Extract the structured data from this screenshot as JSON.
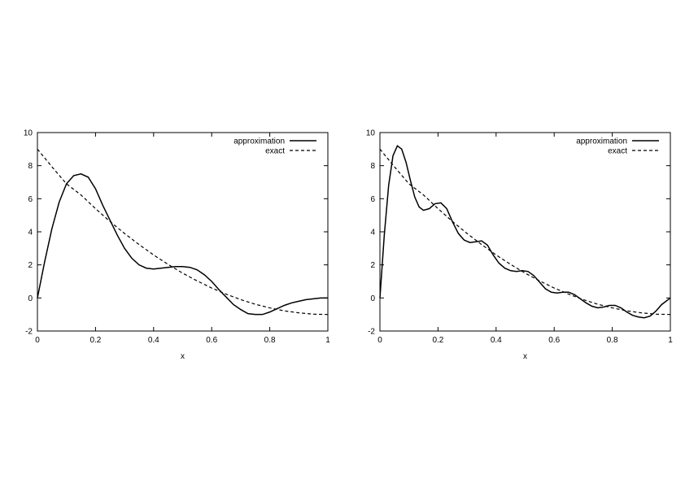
{
  "chart_data": [
    {
      "type": "line",
      "title": "",
      "xlabel": "x",
      "ylabel": "",
      "xlim": [
        0,
        1
      ],
      "ylim": [
        -2,
        10
      ],
      "x_ticks": [
        "0",
        "0.2",
        "0.4",
        "0.6",
        "0.8",
        "1"
      ],
      "y_ticks": [
        "-2",
        "0",
        "2",
        "4",
        "6",
        "8",
        "10"
      ],
      "legend": [
        "approximation",
        "exact"
      ],
      "series": [
        {
          "name": "approximation",
          "style": "solid",
          "x": [
            0,
            0.025,
            0.05,
            0.075,
            0.1,
            0.125,
            0.15,
            0.175,
            0.2,
            0.225,
            0.25,
            0.275,
            0.3,
            0.325,
            0.35,
            0.375,
            0.4,
            0.425,
            0.45,
            0.475,
            0.5,
            0.525,
            0.55,
            0.575,
            0.6,
            0.625,
            0.65,
            0.675,
            0.7,
            0.725,
            0.75,
            0.775,
            0.8,
            0.825,
            0.85,
            0.875,
            0.9,
            0.925,
            0.95,
            0.975,
            1
          ],
          "y": [
            0,
            2.2,
            4.2,
            5.8,
            6.9,
            7.4,
            7.5,
            7.3,
            6.6,
            5.6,
            4.7,
            3.8,
            3.0,
            2.4,
            2.0,
            1.8,
            1.75,
            1.8,
            1.85,
            1.9,
            1.9,
            1.85,
            1.7,
            1.4,
            1.0,
            0.5,
            0.05,
            -0.4,
            -0.7,
            -0.95,
            -1.0,
            -1.0,
            -0.85,
            -0.65,
            -0.45,
            -0.3,
            -0.2,
            -0.1,
            -0.05,
            0.0,
            0.0
          ]
        },
        {
          "name": "exact",
          "style": "dashed",
          "x": [
            0,
            0.05,
            0.1,
            0.15,
            0.2,
            0.25,
            0.3,
            0.35,
            0.4,
            0.45,
            0.5,
            0.55,
            0.6,
            0.65,
            0.7,
            0.75,
            0.8,
            0.85,
            0.9,
            0.95,
            1
          ],
          "y": [
            9.0,
            7.93,
            6.9,
            6.23,
            5.4,
            4.62,
            3.9,
            3.23,
            2.6,
            2.03,
            1.5,
            1.03,
            0.6,
            0.23,
            -0.1,
            -0.38,
            -0.6,
            -0.78,
            -0.9,
            -0.98,
            -1.0
          ]
        }
      ]
    },
    {
      "type": "line",
      "title": "",
      "xlabel": "x",
      "ylabel": "",
      "xlim": [
        0,
        1
      ],
      "ylim": [
        -2,
        10
      ],
      "x_ticks": [
        "0",
        "0.2",
        "0.4",
        "0.6",
        "0.8",
        "1"
      ],
      "y_ticks": [
        "-2",
        "0",
        "2",
        "4",
        "6",
        "8",
        "10"
      ],
      "legend": [
        "approximation",
        "exact"
      ],
      "series": [
        {
          "name": "approximation",
          "style": "solid",
          "x": [
            0,
            0.015,
            0.03,
            0.045,
            0.06,
            0.075,
            0.09,
            0.105,
            0.12,
            0.135,
            0.15,
            0.17,
            0.19,
            0.21,
            0.23,
            0.25,
            0.27,
            0.29,
            0.31,
            0.33,
            0.35,
            0.37,
            0.39,
            0.41,
            0.43,
            0.45,
            0.47,
            0.49,
            0.51,
            0.53,
            0.55,
            0.57,
            0.59,
            0.61,
            0.63,
            0.65,
            0.67,
            0.69,
            0.71,
            0.73,
            0.75,
            0.77,
            0.79,
            0.81,
            0.83,
            0.85,
            0.87,
            0.89,
            0.91,
            0.93,
            0.95,
            0.97,
            1
          ],
          "y": [
            0,
            3.8,
            6.8,
            8.6,
            9.2,
            9.0,
            8.2,
            7.1,
            6.1,
            5.5,
            5.3,
            5.4,
            5.7,
            5.75,
            5.4,
            4.6,
            3.9,
            3.5,
            3.35,
            3.4,
            3.45,
            3.2,
            2.6,
            2.1,
            1.8,
            1.65,
            1.6,
            1.65,
            1.6,
            1.35,
            0.95,
            0.55,
            0.35,
            0.3,
            0.35,
            0.35,
            0.2,
            -0.05,
            -0.3,
            -0.5,
            -0.6,
            -0.55,
            -0.45,
            -0.45,
            -0.6,
            -0.85,
            -1.05,
            -1.15,
            -1.2,
            -1.1,
            -0.8,
            -0.4,
            0.0
          ]
        },
        {
          "name": "exact",
          "style": "dashed",
          "x": [
            0,
            0.05,
            0.1,
            0.15,
            0.2,
            0.25,
            0.3,
            0.35,
            0.4,
            0.45,
            0.5,
            0.55,
            0.6,
            0.65,
            0.7,
            0.75,
            0.8,
            0.85,
            0.9,
            0.95,
            1
          ],
          "y": [
            9.0,
            7.93,
            6.9,
            6.23,
            5.4,
            4.62,
            3.9,
            3.23,
            2.6,
            2.03,
            1.5,
            1.03,
            0.6,
            0.23,
            -0.1,
            -0.38,
            -0.6,
            -0.78,
            -0.9,
            -0.98,
            -1.0
          ]
        }
      ]
    }
  ]
}
